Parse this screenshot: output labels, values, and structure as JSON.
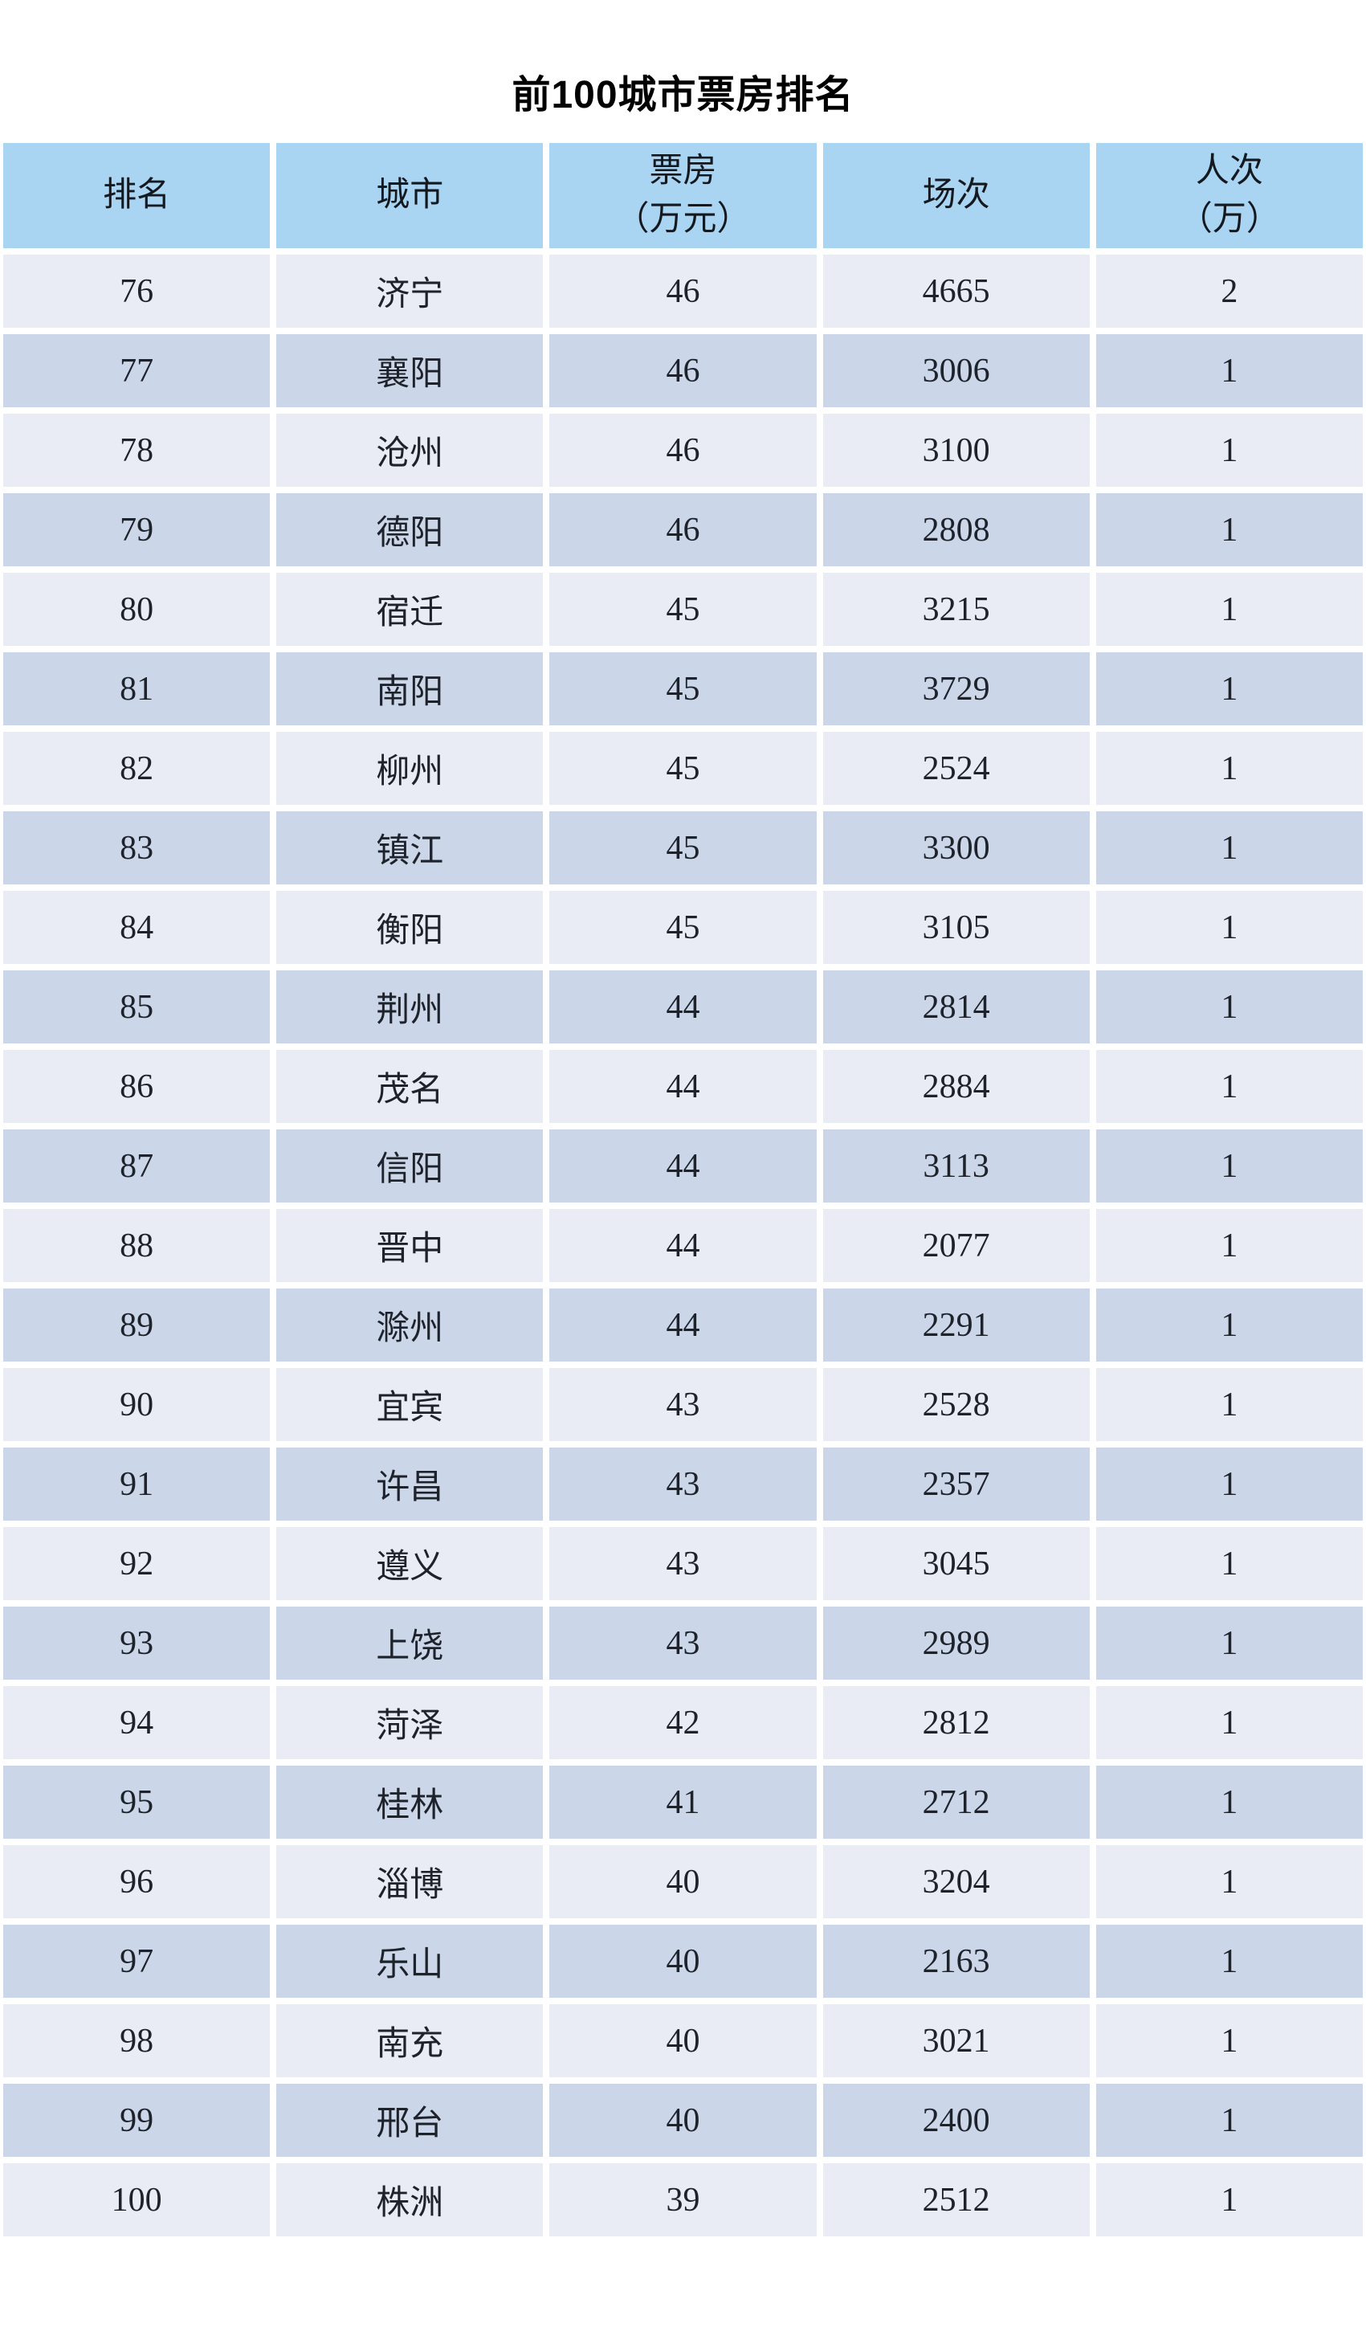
{
  "title": "前100城市票房排名",
  "colors": {
    "header_bg": "#aad5f2",
    "row_odd_bg": "#e9ecf4",
    "row_even_bg": "#cbd6e9",
    "cell_text": "#1e222b",
    "title_color": "#000000"
  },
  "chart_data": {
    "type": "table",
    "title": "前100城市票房排名",
    "columns": [
      "排名",
      "城市",
      "票房\n（万元）",
      "场次",
      "人次\n（万）"
    ],
    "column_keys": [
      "rank",
      "city",
      "boxoffice_wan_yuan",
      "sessions",
      "attendance_wan"
    ],
    "rows": [
      [
        76,
        "济宁",
        46,
        4665,
        2
      ],
      [
        77,
        "襄阳",
        46,
        3006,
        1
      ],
      [
        78,
        "沧州",
        46,
        3100,
        1
      ],
      [
        79,
        "德阳",
        46,
        2808,
        1
      ],
      [
        80,
        "宿迁",
        45,
        3215,
        1
      ],
      [
        81,
        "南阳",
        45,
        3729,
        1
      ],
      [
        82,
        "柳州",
        45,
        2524,
        1
      ],
      [
        83,
        "镇江",
        45,
        3300,
        1
      ],
      [
        84,
        "衡阳",
        45,
        3105,
        1
      ],
      [
        85,
        "荆州",
        44,
        2814,
        1
      ],
      [
        86,
        "茂名",
        44,
        2884,
        1
      ],
      [
        87,
        "信阳",
        44,
        3113,
        1
      ],
      [
        88,
        "晋中",
        44,
        2077,
        1
      ],
      [
        89,
        "滁州",
        44,
        2291,
        1
      ],
      [
        90,
        "宜宾",
        43,
        2528,
        1
      ],
      [
        91,
        "许昌",
        43,
        2357,
        1
      ],
      [
        92,
        "遵义",
        43,
        3045,
        1
      ],
      [
        93,
        "上饶",
        43,
        2989,
        1
      ],
      [
        94,
        "菏泽",
        42,
        2812,
        1
      ],
      [
        95,
        "桂林",
        41,
        2712,
        1
      ],
      [
        96,
        "淄博",
        40,
        3204,
        1
      ],
      [
        97,
        "乐山",
        40,
        2163,
        1
      ],
      [
        98,
        "南充",
        40,
        3021,
        1
      ],
      [
        99,
        "邢台",
        40,
        2400,
        1
      ],
      [
        100,
        "株洲",
        39,
        2512,
        1
      ]
    ]
  }
}
